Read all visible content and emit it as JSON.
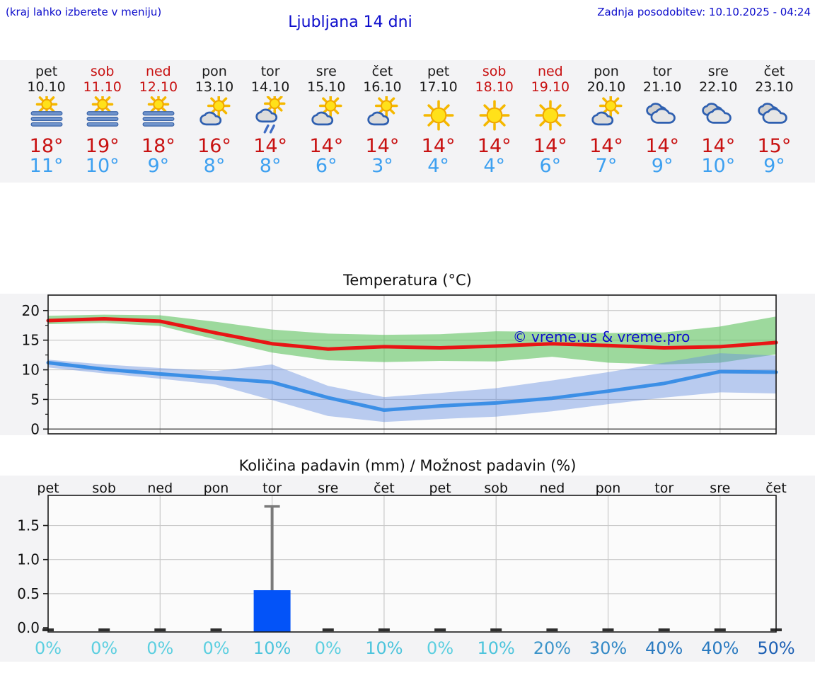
{
  "header": {
    "hint": "(kraj lahko izberete v meniju)",
    "title": "Ljubljana 14 dni",
    "updated": "Zadnja posodobitev: 10.10.2025 - 04:24"
  },
  "colors": {
    "link_blue": "#0d0dcc",
    "weekend_red": "#c81111",
    "high_temp": "#c81111",
    "low_temp": "#3da0f0",
    "panel_gray": "#f3f3f5",
    "plot_bg": "#fbfbfb",
    "grid_gray": "#c9c9c9",
    "axis_dark": "#1a1a1a"
  },
  "forecast": {
    "days": [
      {
        "day": "pet",
        "date": "10.10",
        "weekend": false,
        "icon": "fog-sun",
        "high": "18°",
        "low": "11°"
      },
      {
        "day": "sob",
        "date": "11.10",
        "weekend": true,
        "icon": "fog-sun",
        "high": "19°",
        "low": "10°"
      },
      {
        "day": "ned",
        "date": "12.10",
        "weekend": true,
        "icon": "fog-sun",
        "high": "18°",
        "low": "9°"
      },
      {
        "day": "pon",
        "date": "13.10",
        "weekend": false,
        "icon": "partly-cloudy",
        "high": "16°",
        "low": "8°"
      },
      {
        "day": "tor",
        "date": "14.10",
        "weekend": false,
        "icon": "rain-shower",
        "high": "14°",
        "low": "8°"
      },
      {
        "day": "sre",
        "date": "15.10",
        "weekend": false,
        "icon": "partly-cloudy",
        "high": "14°",
        "low": "6°"
      },
      {
        "day": "čet",
        "date": "16.10",
        "weekend": false,
        "icon": "partly-cloudy",
        "high": "14°",
        "low": "3°"
      },
      {
        "day": "pet",
        "date": "17.10",
        "weekend": false,
        "icon": "sunny",
        "high": "14°",
        "low": "4°"
      },
      {
        "day": "sob",
        "date": "18.10",
        "weekend": true,
        "icon": "sunny",
        "high": "14°",
        "low": "4°"
      },
      {
        "day": "ned",
        "date": "19.10",
        "weekend": true,
        "icon": "sunny",
        "high": "14°",
        "low": "6°"
      },
      {
        "day": "pon",
        "date": "20.10",
        "weekend": false,
        "icon": "partly-cloudy",
        "high": "14°",
        "low": "7°"
      },
      {
        "day": "tor",
        "date": "21.10",
        "weekend": false,
        "icon": "cloudy",
        "high": "14°",
        "low": "9°"
      },
      {
        "day": "sre",
        "date": "22.10",
        "weekend": false,
        "icon": "cloudy",
        "high": "14°",
        "low": "10°"
      },
      {
        "day": "čet",
        "date": "23.10",
        "weekend": false,
        "icon": "cloudy",
        "high": "15°",
        "low": "9°"
      }
    ]
  },
  "chart_data": [
    {
      "type": "line",
      "title": "Temperatura (°C)",
      "x_labels": [
        "pet",
        "sob",
        "ned",
        "pon",
        "tor",
        "sre",
        "čet",
        "pet",
        "sob",
        "ned",
        "pon",
        "tor",
        "sre",
        "čet"
      ],
      "ylim": [
        -0.8,
        22.6
      ],
      "yticks": [
        0,
        5,
        10,
        15,
        20
      ],
      "minor_yticks": [
        2.5,
        7.5,
        12.5,
        17.5
      ],
      "grid_day_indices": [
        2,
        4,
        6,
        8,
        10,
        12
      ],
      "grid": true,
      "watermark": "© vreme.us & vreme.pro",
      "watermark_color": "#0d0dcc",
      "series": [
        {
          "name": "max-temp",
          "color": "#e81515",
          "values": [
            18.3,
            18.6,
            18.2,
            16.2,
            14.4,
            13.5,
            13.9,
            13.7,
            14.0,
            14.4,
            14.1,
            13.7,
            13.9,
            14.6
          ]
        },
        {
          "name": "min-temp",
          "color": "#3c8fe6",
          "values": [
            11.2,
            10.1,
            9.3,
            8.6,
            7.9,
            5.3,
            3.2,
            3.9,
            4.4,
            5.2,
            6.4,
            7.7,
            9.7,
            9.6
          ]
        }
      ],
      "bands": [
        {
          "name": "max-temp-range",
          "color": "rgba(95,195,95,0.6)",
          "upper": [
            19.1,
            19.3,
            19.2,
            18.1,
            16.8,
            16.1,
            15.9,
            16.0,
            16.5,
            16.4,
            16.2,
            16.3,
            17.3,
            19.0
          ],
          "lower": [
            17.7,
            17.9,
            17.4,
            15.1,
            12.9,
            11.6,
            11.3,
            11.5,
            11.4,
            12.2,
            11.2,
            10.9,
            11.2,
            12.6
          ]
        },
        {
          "name": "min-temp-range",
          "color": "rgba(105,145,225,0.45)",
          "upper": [
            11.7,
            10.9,
            10.3,
            9.8,
            10.9,
            7.3,
            5.4,
            6.1,
            6.9,
            8.2,
            9.6,
            11.2,
            12.8,
            12.4
          ],
          "lower": [
            10.4,
            9.4,
            8.5,
            7.5,
            4.9,
            2.2,
            1.2,
            1.7,
            2.1,
            3.0,
            4.2,
            5.3,
            6.2,
            6.0
          ]
        }
      ]
    },
    {
      "type": "bar",
      "title": "Količina padavin (mm) / Možnost padavin (%)",
      "x_labels": [
        "pet",
        "sob",
        "ned",
        "pon",
        "tor",
        "sre",
        "čet",
        "pet",
        "sob",
        "ned",
        "pon",
        "tor",
        "sre",
        "čet"
      ],
      "ylim": [
        0,
        1.95
      ],
      "yticks": [
        0.0,
        0.5,
        1.0,
        1.5
      ],
      "ytick_labels": [
        "0.0",
        "0.5",
        "1.0",
        "1.5"
      ],
      "grid_day_indices": [
        2,
        4,
        6,
        8,
        10,
        12
      ],
      "grid": true,
      "values": [
        0,
        0,
        0,
        0,
        0.55,
        0,
        0,
        0,
        0,
        0,
        0,
        0,
        0,
        0
      ],
      "bar_color": "#0353f8",
      "whiskers": [
        {
          "day_index": 4,
          "low": 0,
          "high": 1.78
        }
      ],
      "whisker_color": "#7a7a7a",
      "stub_color": "#2e2e2e",
      "probabilities": [
        "0%",
        "0%",
        "0%",
        "0%",
        "10%",
        "0%",
        "10%",
        "0%",
        "10%",
        "20%",
        "30%",
        "40%",
        "40%",
        "50%"
      ],
      "prob_colors": {
        "0%": "#5ccfe0",
        "10%": "#4cc4dc",
        "20%": "#3d95ca",
        "30%": "#3389c6",
        "40%": "#2a7ac0",
        "50%": "#1d60b4"
      }
    }
  ]
}
